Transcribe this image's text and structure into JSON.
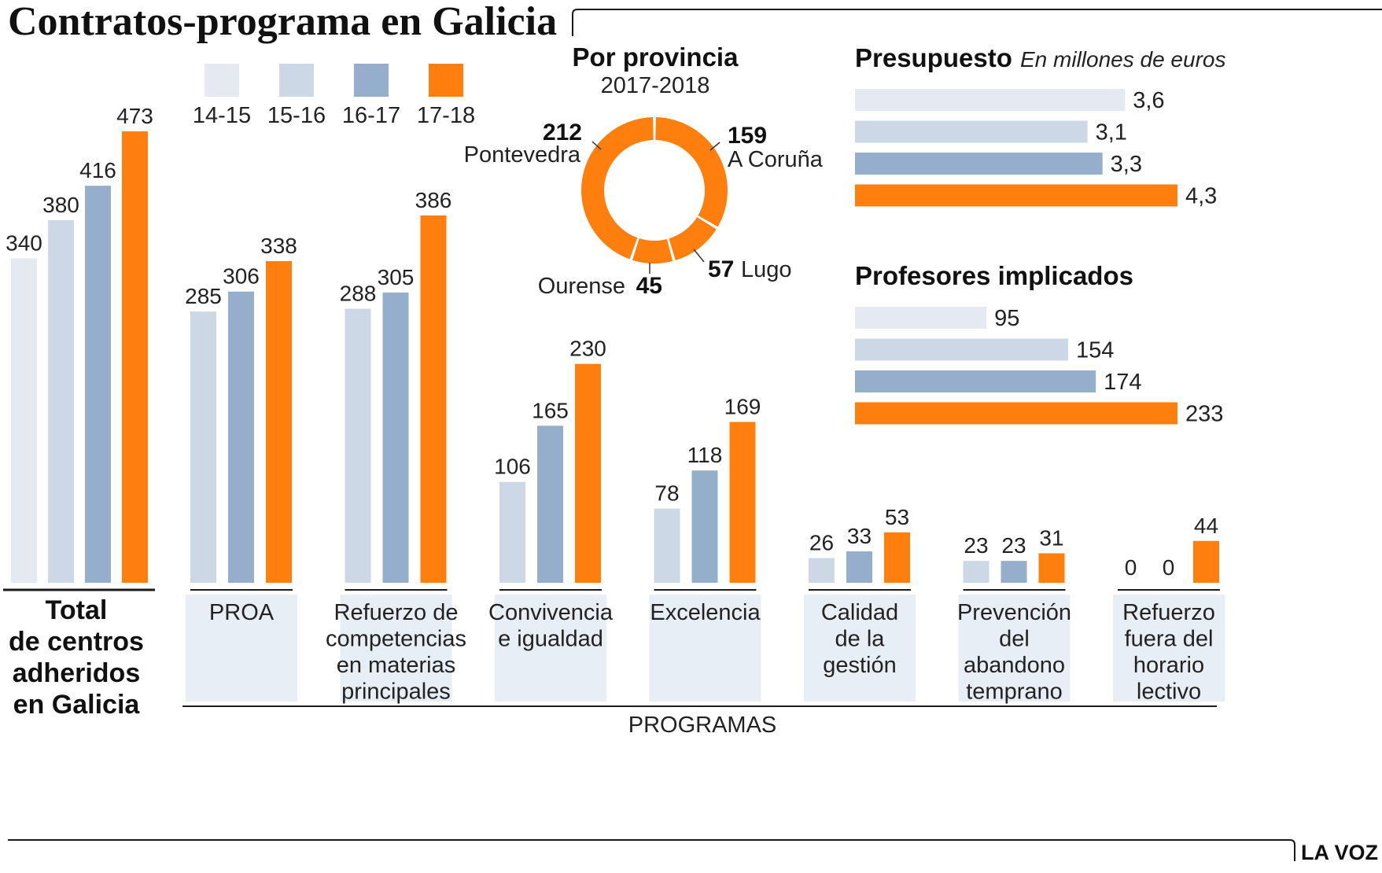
{
  "title": "Contratos-programa en Galicia",
  "credit": "LA VOZ",
  "colors": {
    "s1415": "#e4e9f2",
    "s1516": "#ccd8e5",
    "s1617": "#94aecb",
    "s1718": "#ff7f0e",
    "panel": "#e8eef6",
    "rule": "#1a1a1a"
  },
  "legend": [
    "14-15",
    "15-16",
    "16-17",
    "17-18"
  ],
  "chart_data": [
    {
      "type": "bar",
      "id": "total",
      "categories_label": [
        "Total",
        "de centros",
        "adheridos",
        "en Galicia"
      ],
      "series": [
        {
          "name": "14-15",
          "values": [
            340
          ]
        },
        {
          "name": "15-16",
          "values": [
            380
          ]
        },
        {
          "name": "16-17",
          "values": [
            416
          ]
        },
        {
          "name": "17-18",
          "values": [
            473
          ]
        }
      ]
    },
    {
      "type": "bar",
      "id": "programas",
      "xlabel": "PROGRAMAS",
      "categories": [
        [
          "PROA"
        ],
        [
          "Refuerzo de",
          "competencias",
          "en materias",
          "principales"
        ],
        [
          "Convivencia",
          "e igualdad"
        ],
        [
          "Excelencia"
        ],
        [
          "Calidad",
          "de la",
          "gestión"
        ],
        [
          "Prevención",
          "del",
          "abandono",
          "temprano"
        ],
        [
          "Refuerzo",
          "fuera del",
          "horario",
          "lectivo"
        ]
      ],
      "series": [
        {
          "name": "15-16",
          "values": [
            285,
            288,
            106,
            78,
            26,
            23,
            0
          ]
        },
        {
          "name": "16-17",
          "values": [
            306,
            305,
            165,
            118,
            33,
            23,
            0
          ]
        },
        {
          "name": "17-18",
          "values": [
            338,
            386,
            230,
            169,
            53,
            31,
            44
          ]
        }
      ]
    },
    {
      "type": "pie",
      "id": "provincia",
      "title": "Por provincia",
      "subtitle": "2017-2018",
      "slices": [
        {
          "label": "A Coruña",
          "value": 159
        },
        {
          "label": "Lugo",
          "value": 57
        },
        {
          "label": "Ourense",
          "value": 45
        },
        {
          "label": "Pontevedra",
          "value": 212
        }
      ],
      "value_labels": [
        "159",
        "57",
        "45",
        "212"
      ]
    },
    {
      "type": "bar",
      "orientation": "horizontal",
      "id": "presupuesto",
      "title": "Presupuesto",
      "subtitle": "En millones de euros",
      "categories": [
        "14-15",
        "15-16",
        "16-17",
        "17-18"
      ],
      "values": [
        3.6,
        3.1,
        3.3,
        4.3
      ],
      "value_labels": [
        "3,6",
        "3,1",
        "3,3",
        "4,3"
      ]
    },
    {
      "type": "bar",
      "orientation": "horizontal",
      "id": "profesores",
      "title": "Profesores implicados",
      "categories": [
        "14-15",
        "15-16",
        "16-17",
        "17-18"
      ],
      "values": [
        95,
        154,
        174,
        233
      ],
      "value_labels": [
        "95",
        "154",
        "174",
        "233"
      ]
    }
  ]
}
